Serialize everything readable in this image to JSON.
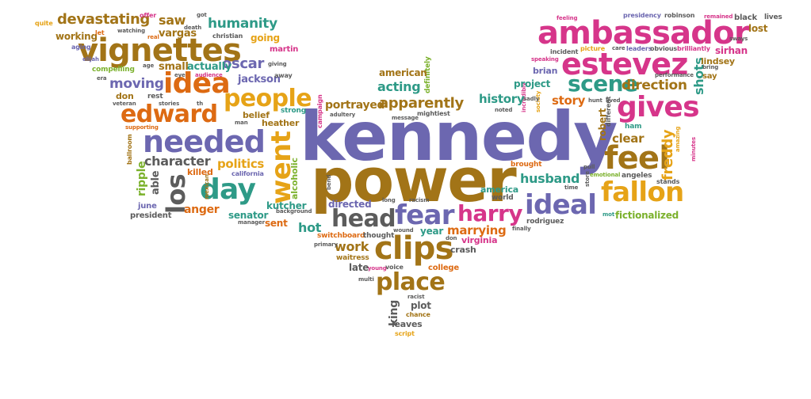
{
  "colors": {
    "purple": "#6c67b0",
    "brown": "#a27417",
    "green": "#2e9a87",
    "pink": "#d6358a",
    "orange": "#dd6a12",
    "gold": "#e6a317",
    "gray": "#5c5c5c",
    "lime": "#7bb12c"
  },
  "words": {
    "kennedy": "kennedy",
    "power": "power",
    "ambassador": "ambassador",
    "estevez": "estevez",
    "vignettes": "vignettes",
    "fear": "fear",
    "harry": "harry",
    "ideal": "ideal",
    "clips": "clips",
    "head": "head",
    "needed": "needed",
    "idea": "idea",
    "people": "people",
    "edward": "edward",
    "day": "day",
    "feel": "feel",
    "fallon": "fallon",
    "gives": "gives",
    "scene": "scene",
    "place": "place",
    "went": "went",
    "los": "los",
    "devastating": "devastating",
    "humanity": "humanity",
    "oscar": "oscar",
    "moving": "moving",
    "apparently": "apparently",
    "history": "history",
    "story": "story",
    "direction": "direction",
    "acting": "acting",
    "project": "project",
    "brian": "brian",
    "shots": "shots",
    "marrying": "marrying",
    "husband": "husband",
    "politics": "politics",
    "character": "character",
    "anger": "anger",
    "portrayed": "portrayed",
    "hot": "hot",
    "work": "work",
    "america": "america",
    "freddy": "freddy",
    "clear": "clear",
    "fictionalized": "fictionalized",
    "directed": "directed",
    "sent": "sent",
    "kutcher": "kutcher",
    "senator": "senator",
    "killed": "killed",
    "ripple": "ripple",
    "able": "able",
    "june": "june",
    "president": "president",
    "alcoholic": "alcoholic",
    "virginia": "virginia",
    "crash": "crash",
    "college": "college",
    "late": "late",
    "waitress": "waitress",
    "year": "year",
    "plot": "plot",
    "king": "king",
    "leaves": "leaves",
    "american": "american",
    "saw": "saw",
    "vargas": "vargas",
    "working": "working",
    "small": "small",
    "actually": "actually",
    "jackson": "jackson",
    "going": "going",
    "martin": "martin",
    "don": "don",
    "rest": "rest",
    "lindsey": "lindsey",
    "say": "say",
    "sirhan": "sirhan",
    "lost": "lost",
    "black": "black",
    "lives": "lives",
    "robert": "robert",
    "brought": "brought",
    "belief": "belief",
    "heather": "heather",
    "strong": "strong",
    "rodriguez": "rodriguez",
    "switchboard": "switchboard",
    "thought": "thought",
    "world": "world",
    "stands": "stands",
    "angeles": "angeles",
    "ham": "ham",
    "quite": "quite",
    "offer": "offer",
    "got": "got",
    "let": "let",
    "christian": "christian",
    "aging": "aging",
    "real": "real",
    "elijah": "elijah",
    "age": "age",
    "eye": "eye",
    "compelling": "compelling",
    "era": "era",
    "veteran": "veteran",
    "supporting": "supporting",
    "stories": "stories",
    "giving": "giving",
    "away": "away",
    "audience": "audience",
    "watching": "watching",
    "death": "death",
    "th": "th",
    "man": "man",
    "california": "california",
    "background": "background",
    "manager": "manager",
    "bend": "bend",
    "racism": "racism",
    "long": "long",
    "wound": "wound",
    "primary": "primary",
    "finally": "finally",
    "voice": "voice",
    "young": "young",
    "multi": "multi",
    "racist": "racist",
    "chance": "chance",
    "script": "script",
    "campaign": "campaign",
    "adultery": "adultery",
    "message": "message",
    "mightiest": "mightiest",
    "definitely": "definitely",
    "presidency": "presidency",
    "robinson": "robinson",
    "remained": "remained",
    "feeling": "feeling",
    "incident": "incident",
    "picture": "picture",
    "care": "care",
    "leaders": "leaders",
    "obvious": "obvious",
    "brilliantly": "brilliantly",
    "sways": "sways",
    "speaking": "speaking",
    "hunt": "hunt",
    "lived": "lived",
    "bring": "bring",
    "performance": "performance",
    "incredibly": "incredibly",
    "sadly": "sadly",
    "society": "society",
    "noted": "noted",
    "different": "different",
    "pull": "pull",
    "emotional": "emotional",
    "time": "time",
    "store": "store",
    "ballroom": "ballroom",
    "mexican": "mexican",
    "amazing": "amazing",
    "minutes": "minutes",
    "mot": "mot",
    "dont": "don"
  }
}
